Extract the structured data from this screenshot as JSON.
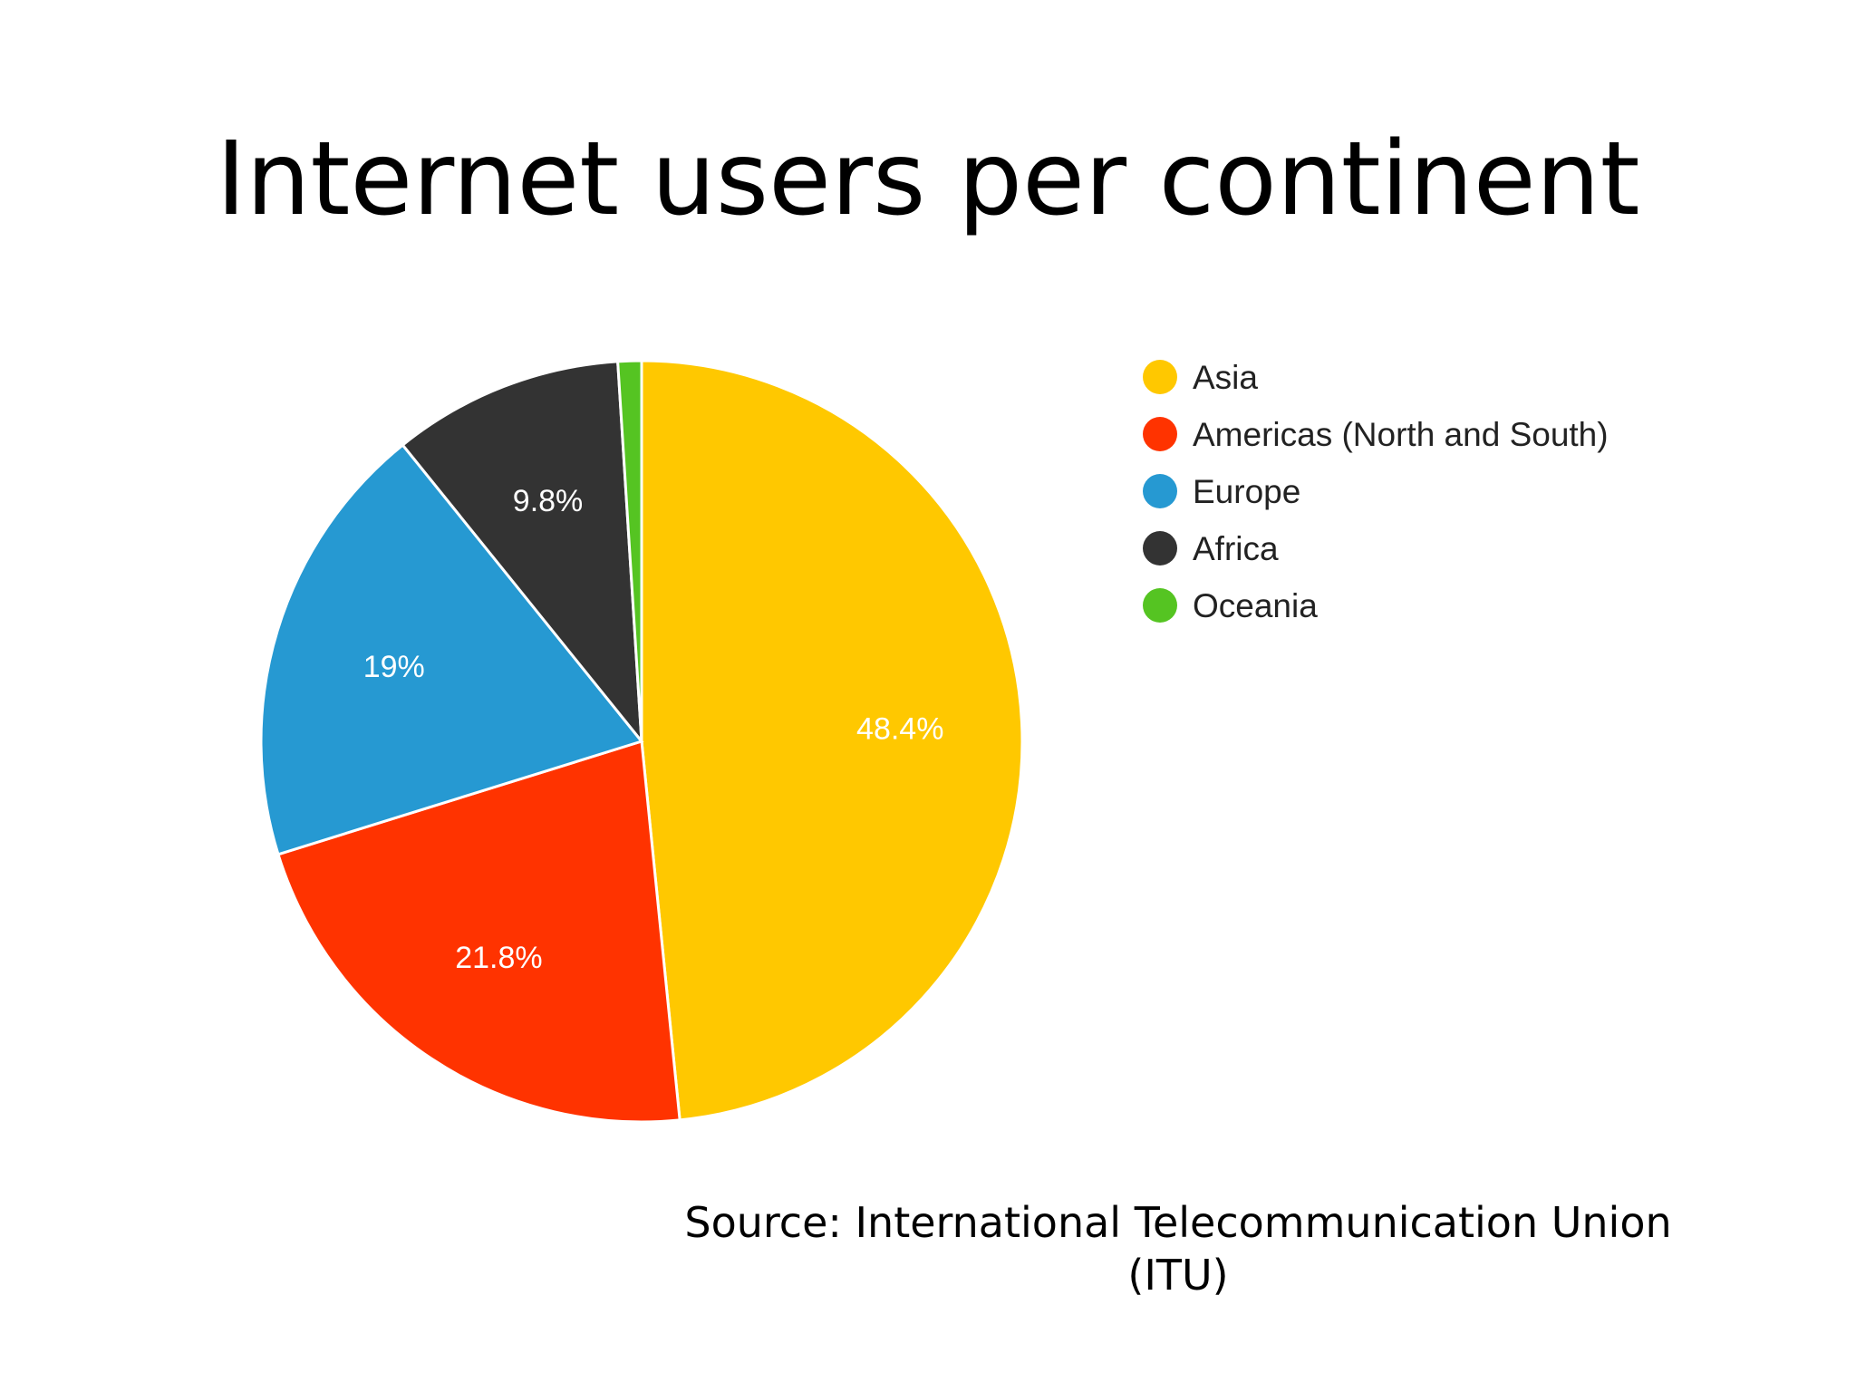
{
  "slide": {
    "title": "Internet users per continent",
    "source_line1": "Source: International Telecommunication Union",
    "source_line2": "(ITU)"
  },
  "chart_data": {
    "type": "pie",
    "title": "",
    "legend_position": "right",
    "slices": [
      {
        "name": "Asia",
        "value": 48.4,
        "label": "48.4%",
        "color": "#FFC800"
      },
      {
        "name": "Americas (North and South)",
        "value": 21.8,
        "label": "21.8%",
        "color": "#FF3300"
      },
      {
        "name": "Europe",
        "value": 19,
        "label": "19%",
        "color": "#2699D2"
      },
      {
        "name": "Africa",
        "value": 9.8,
        "label": "9.8%",
        "color": "#333333"
      },
      {
        "name": "Oceania",
        "value": 1,
        "label": "",
        "color": "#55C422"
      }
    ]
  }
}
